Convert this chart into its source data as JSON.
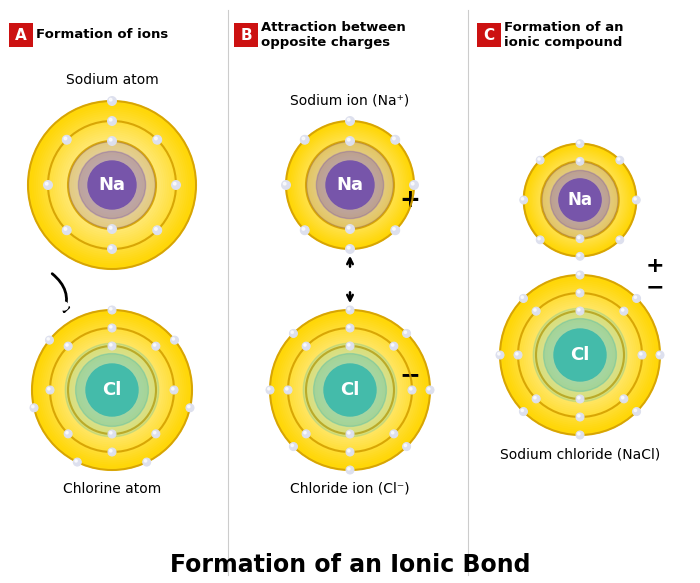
{
  "title": "Formation of an Ionic Bond",
  "title_fontsize": 17,
  "background_color": "#ffffff",
  "header_A": "Formation of ions",
  "header_B": "Attraction between\nopposite charges",
  "header_C": "Formation of an\nionic compound",
  "badge_color": "#cc1111",
  "na_color": "#7755aa",
  "na_glow": "#aa88dd",
  "cl_color": "#44bbaa",
  "cl_glow": "#88ddcc",
  "shell_yellow_outer": "#ffd700",
  "shell_yellow_mid": "#ffec6e",
  "shell_yellow_inner": "#fffacc",
  "shell_white_center": "#ffffff",
  "electron_color": "#dde0ee",
  "electron_edge": "#9999bb",
  "sub_labels": {
    "A_top": "Sodium atom",
    "A_bot": "Chlorine atom",
    "B_top": "Sodium ion (Na⁺)",
    "B_bot": "Chloride ion (Cl⁻)",
    "C_bot": "Sodium chloride (NaCl)"
  }
}
